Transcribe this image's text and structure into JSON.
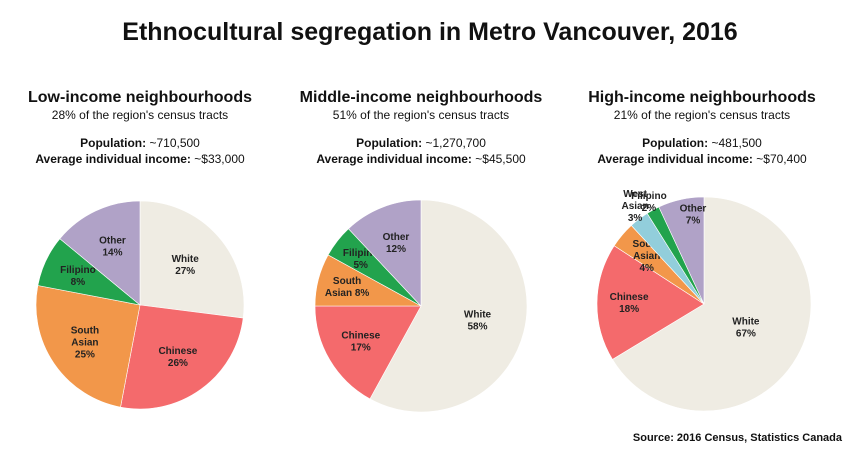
{
  "title": "Ethnocultural segregation in Metro Vancouver, 2016",
  "source": "Source: 2016 Census, Statistics Canada",
  "panels": [
    {
      "title": "Low-income neighbourhoods",
      "subtitle": "28% of the region's census tracts",
      "population_label": "Population:",
      "population_value": "~710,500",
      "income_label": "Average individual income:",
      "income_value": "~$33,000"
    },
    {
      "title": "Middle-income neighbourhoods",
      "subtitle": "51% of the region's census tracts",
      "population_label": "Population:",
      "population_value": "~1,270,700",
      "income_label": "Average individual income:",
      "income_value": "~$45,500"
    },
    {
      "title": "High-income neighbourhoods",
      "subtitle": "21% of the region's census tracts",
      "population_label": "Population:",
      "population_value": "~481,500",
      "income_label": "Average individual income:",
      "income_value": "~$70,400"
    }
  ],
  "colors": {
    "White": "#efece3",
    "Chinese": "#f46a6c",
    "South Asian": "#f2974a",
    "Filipino": "#22a34d",
    "West Asian": "#92cedb",
    "Other": "#b0a2c7"
  },
  "chart_data": [
    {
      "type": "pie",
      "title": "Low-income neighbourhoods",
      "slices": [
        {
          "label": "White",
          "value": 27,
          "display": [
            "White",
            "27%"
          ]
        },
        {
          "label": "Chinese",
          "value": 26,
          "display": [
            "Chinese",
            "26%"
          ]
        },
        {
          "label": "South Asian",
          "value": 25,
          "display": [
            "South",
            "Asian",
            "25%"
          ]
        },
        {
          "label": "Filipino",
          "value": 8,
          "display": [
            "Filipino",
            "8%"
          ]
        },
        {
          "label": "Other",
          "value": 14,
          "display": [
            "Other",
            "14%"
          ]
        }
      ]
    },
    {
      "type": "pie",
      "title": "Middle-income neighbourhoods",
      "slices": [
        {
          "label": "White",
          "value": 58,
          "display": [
            "White",
            "58%"
          ]
        },
        {
          "label": "Chinese",
          "value": 17,
          "display": [
            "Chinese",
            "17%"
          ]
        },
        {
          "label": "South Asian",
          "value": 8,
          "display": [
            "South",
            "Asian 8%"
          ]
        },
        {
          "label": "Filipino",
          "value": 5,
          "display": [
            "Filipino",
            "5%"
          ]
        },
        {
          "label": "Other",
          "value": 12,
          "display": [
            "Other",
            "12%"
          ]
        }
      ]
    },
    {
      "type": "pie",
      "title": "High-income neighbourhoods",
      "slices": [
        {
          "label": "White",
          "value": 67,
          "display": [
            "White",
            "67%"
          ]
        },
        {
          "label": "Chinese",
          "value": 18,
          "display": [
            "Chinese",
            "18%"
          ]
        },
        {
          "label": "South Asian",
          "value": 4,
          "display": [
            "South",
            "Asian",
            "4%"
          ]
        },
        {
          "label": "West Asian",
          "value": 3,
          "display": [
            "West",
            "Asian",
            "3%"
          ]
        },
        {
          "label": "Filipino",
          "value": 2,
          "display": [
            "Filipino",
            "2%"
          ]
        },
        {
          "label": "Other",
          "value": 7,
          "display": [
            "Other",
            "7%"
          ]
        }
      ]
    }
  ]
}
